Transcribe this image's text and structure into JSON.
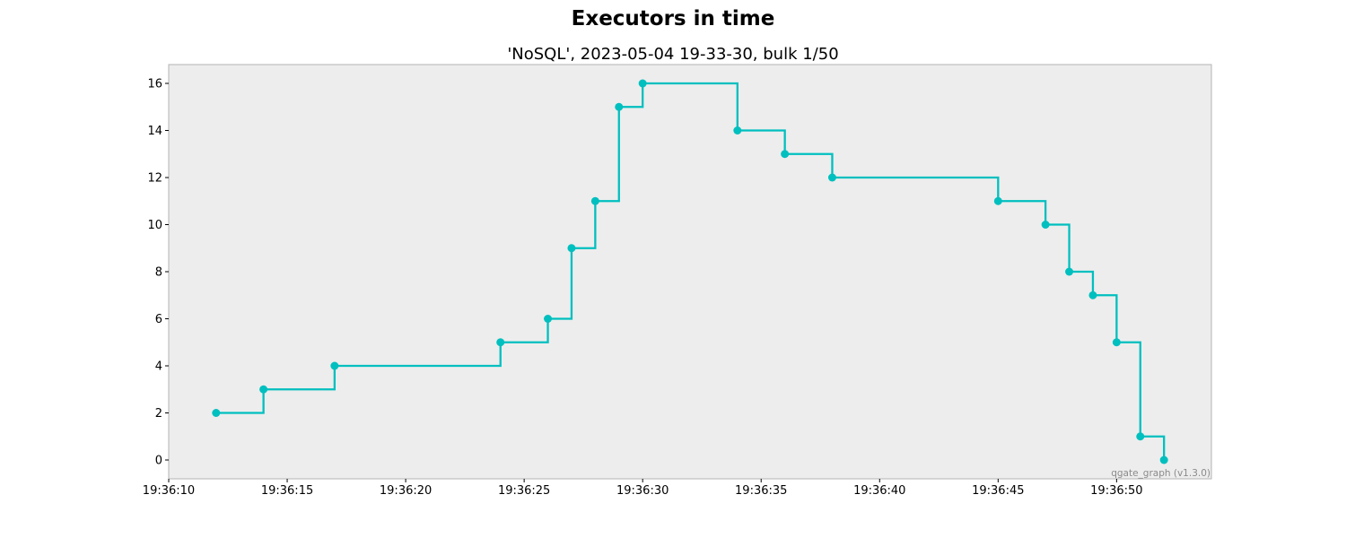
{
  "chart_data": {
    "type": "line",
    "step": "post",
    "title": "Executors in time",
    "subtitle": "'NoSQL', 2023-05-04 19-33-30, bulk 1/50",
    "xlabel": "",
    "ylabel": "",
    "watermark": "qgate_graph (v1.3.0)",
    "x_ticks": [
      "19:36:10",
      "19:36:15",
      "19:36:20",
      "19:36:25",
      "19:36:30",
      "19:36:35",
      "19:36:40",
      "19:36:45",
      "19:36:50"
    ],
    "y_ticks": [
      "0",
      "2",
      "4",
      "6",
      "8",
      "10",
      "12",
      "14",
      "16"
    ],
    "xlim": [
      "19:36:10",
      "19:36:54"
    ],
    "ylim": [
      -0.8,
      16.8
    ],
    "grid": false,
    "background": "#ededed",
    "line_color": "#00bfbf",
    "series": [
      {
        "x": [
          "19:36:12",
          "19:36:14",
          "19:36:17",
          "19:36:24",
          "19:36:26",
          "19:36:27",
          "19:36:28",
          "19:36:29",
          "19:36:30",
          "19:36:34",
          "19:36:36",
          "19:36:38",
          "19:36:45",
          "19:36:47",
          "19:36:48",
          "19:36:49",
          "19:36:50",
          "19:36:51",
          "19:36:52"
        ],
        "values": [
          2,
          3,
          4,
          5,
          6,
          9,
          11,
          15,
          16,
          14,
          13,
          12,
          11,
          10,
          8,
          7,
          5,
          1,
          0
        ]
      }
    ]
  }
}
